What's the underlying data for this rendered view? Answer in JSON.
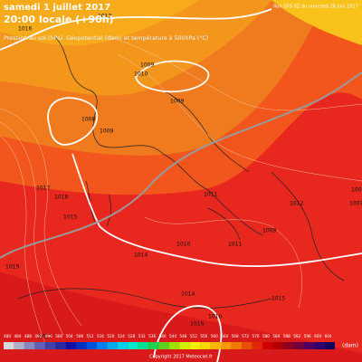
{
  "header": {
    "date": "samedi 1 juillet 2017",
    "time": "20:00 locale (+90h)",
    "subtitle": "Pression au sol (hPa), Géopotentiel (dam) et température à 500hPa (°C)",
    "run": "Run GFS 0Z du mercredi 28 juin 2017"
  },
  "isobar_labels": [
    "1013",
    "1016",
    "1010",
    "1009",
    "1009",
    "1008",
    "1009",
    "1015",
    "1014",
    "1011",
    "1012",
    "1017",
    "1016",
    "1014",
    "1011",
    "1010",
    "1009",
    "1006",
    "1007",
    "1019",
    "1017",
    "1018",
    "1010",
    "1015"
  ],
  "colorbar": {
    "labels": [
      480,
      484,
      488,
      492,
      496,
      500,
      504,
      508,
      512,
      516,
      520,
      524,
      528,
      532,
      536,
      540,
      544,
      548,
      552,
      556,
      560,
      564,
      568,
      572,
      576,
      580,
      584,
      588,
      592,
      596,
      600,
      604
    ],
    "unit": "(dam)"
  },
  "footer": {
    "copyright": "Copyright 2017 Meteociel.fr"
  }
}
